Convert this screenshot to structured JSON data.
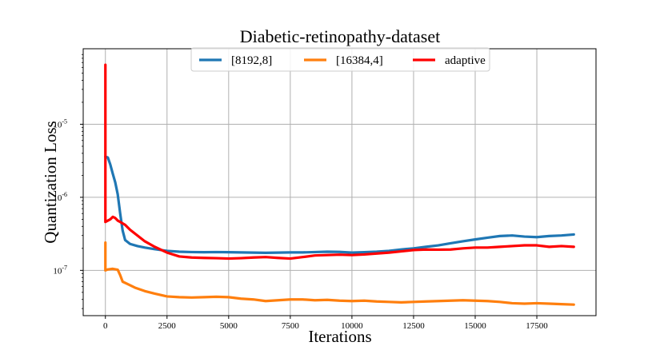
{
  "chart_data": {
    "type": "line",
    "title": "Diabetic-retinopathy-dataset",
    "xlabel": "Iterations",
    "ylabel": "Quantization Loss",
    "yscale": "log",
    "xlim": [
      -900,
      19900
    ],
    "ylim": [
      2.4e-08,
      0.000108
    ],
    "grid": true,
    "legend_position": "top-center",
    "x_ticks": [
      0,
      2500,
      5000,
      7500,
      10000,
      12500,
      15000,
      17500
    ],
    "x_tick_labels": [
      "0",
      "2500",
      "5000",
      "7500",
      "10000",
      "12500",
      "15000",
      "17500"
    ],
    "y_ticks": [
      1e-07,
      1e-06,
      1e-05
    ],
    "y_tick_labels": [
      {
        "base": "10",
        "exp": "-7"
      },
      {
        "base": "10",
        "exp": "-6"
      },
      {
        "base": "10",
        "exp": "-5"
      }
    ],
    "series": [
      {
        "name": "[8192,8]",
        "color": "#1f77b4",
        "x": [
          0,
          100,
          200,
          300,
          400,
          500,
          600,
          700,
          800,
          1000,
          1300,
          1600,
          2000,
          2500,
          3000,
          3500,
          4000,
          4500,
          5000,
          5500,
          6000,
          6500,
          7000,
          7500,
          8000,
          8500,
          9000,
          9500,
          10000,
          10500,
          11000,
          11500,
          12000,
          12500,
          13000,
          13500,
          14000,
          14500,
          15000,
          15500,
          16000,
          16500,
          17000,
          17500,
          18000,
          18500,
          19000
        ],
        "y": [
          3.6e-06,
          3.5e-06,
          2.8e-06,
          2.1e-06,
          1.6e-06,
          1.1e-06,
          6e-07,
          3.5e-07,
          2.6e-07,
          2.3e-07,
          2.15e-07,
          2.05e-07,
          1.95e-07,
          1.85e-07,
          1.8e-07,
          1.78e-07,
          1.77e-07,
          1.78e-07,
          1.77e-07,
          1.76e-07,
          1.75e-07,
          1.74e-07,
          1.75e-07,
          1.76e-07,
          1.76e-07,
          1.78e-07,
          1.8e-07,
          1.79e-07,
          1.75e-07,
          1.77e-07,
          1.8e-07,
          1.85e-07,
          1.93e-07,
          2e-07,
          2.1e-07,
          2.2e-07,
          2.35e-07,
          2.5e-07,
          2.65e-07,
          2.8e-07,
          2.95e-07,
          3e-07,
          2.9e-07,
          2.85e-07,
          2.95e-07,
          3e-07,
          3.1e-07
        ]
      },
      {
        "name": "[16384,4]",
        "color": "#ff7f0e",
        "x": [
          0,
          0.1,
          100,
          300,
          500,
          600,
          700,
          900,
          1200,
          1600,
          2000,
          2500,
          3000,
          3500,
          4000,
          4500,
          5000,
          5500,
          6000,
          6500,
          7000,
          7500,
          8000,
          8500,
          9000,
          9500,
          10000,
          10500,
          11000,
          11500,
          12000,
          12500,
          13000,
          13500,
          14000,
          14500,
          15000,
          15500,
          16000,
          16500,
          17000,
          17500,
          18000,
          18500,
          19000
        ],
        "y": [
          2.4e-07,
          1e-07,
          1.03e-07,
          1.05e-07,
          1.02e-07,
          8.6e-08,
          7e-08,
          6.5e-08,
          5.8e-08,
          5.2e-08,
          4.8e-08,
          4.4e-08,
          4.3e-08,
          4.25e-08,
          4.3e-08,
          4.35e-08,
          4.3e-08,
          4.1e-08,
          4e-08,
          3.8e-08,
          3.9e-08,
          4e-08,
          4e-08,
          3.9e-08,
          3.95e-08,
          3.85e-08,
          3.8e-08,
          3.85e-08,
          3.75e-08,
          3.7e-08,
          3.65e-08,
          3.7e-08,
          3.75e-08,
          3.8e-08,
          3.85e-08,
          3.9e-08,
          3.85e-08,
          3.8e-08,
          3.7e-08,
          3.55e-08,
          3.5e-08,
          3.55e-08,
          3.5e-08,
          3.45e-08,
          3.4e-08
        ]
      },
      {
        "name": "adaptive",
        "color": "#ff0000",
        "x": [
          0,
          0.1,
          100,
          200,
          300,
          400,
          500,
          600,
          800,
          1000,
          1300,
          1600,
          2000,
          2500,
          3000,
          3500,
          4000,
          4500,
          5000,
          5500,
          6000,
          6500,
          7000,
          7500,
          8000,
          8500,
          9000,
          9500,
          10000,
          10500,
          11000,
          11500,
          12000,
          12500,
          13000,
          13500,
          14000,
          14500,
          15000,
          15500,
          16000,
          16500,
          17000,
          17500,
          18000,
          18500,
          19000
        ],
        "y": [
          6.5e-05,
          4.6e-07,
          4.8e-07,
          5e-07,
          5.4e-07,
          5.2e-07,
          4.8e-07,
          4.6e-07,
          4.2e-07,
          3.6e-07,
          3e-07,
          2.5e-07,
          2.1e-07,
          1.75e-07,
          1.55e-07,
          1.5e-07,
          1.48e-07,
          1.47e-07,
          1.45e-07,
          1.47e-07,
          1.5e-07,
          1.52e-07,
          1.48e-07,
          1.45e-07,
          1.52e-07,
          1.6e-07,
          1.62e-07,
          1.64e-07,
          1.62e-07,
          1.65e-07,
          1.7e-07,
          1.75e-07,
          1.82e-07,
          1.9e-07,
          1.93e-07,
          1.92e-07,
          1.93e-07,
          2e-07,
          2.05e-07,
          2.05e-07,
          2.1e-07,
          2.15e-07,
          2.2e-07,
          2.2e-07,
          2.1e-07,
          2.15e-07,
          2.1e-07
        ]
      }
    ]
  }
}
